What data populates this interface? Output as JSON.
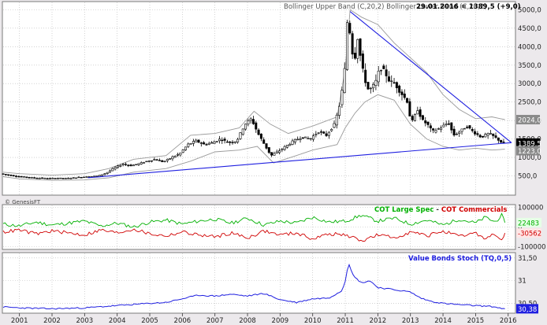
{
  "header": {
    "indicator_label": "Bollinger Upper Band (C,20,2)   Bollinger Lower Band (C,20,2)",
    "quote": "29.01.2016 = 1389,5 (+9,0)"
  },
  "watermark": "© GenesisFT",
  "colors": {
    "price": "#000000",
    "bands": "#9a9a9a",
    "trendline": "#1f1fe0",
    "cot_large": "#00b000",
    "cot_commercials": "#d00000",
    "bond_stoch": "#1f1fe0",
    "grid": "#b8b8b8",
    "panel_bg": "#ffffff",
    "page_bg": "#ece9ec"
  },
  "chart_data": [
    {
      "type": "candlestick",
      "panel": "price",
      "xlim": [
        2000.5,
        2016.2
      ],
      "ylim": [
        0,
        5200
      ],
      "y_ticks": [
        "5000,0",
        "4500,0",
        "4000,0",
        "3500,0",
        "3000,0",
        "2500,0",
        "2000,0",
        "1500,0",
        "1000,0",
        "500,0"
      ],
      "y_tick_values": [
        5000,
        4500,
        4000,
        3500,
        3000,
        2500,
        2000,
        1500,
        1000,
        500
      ],
      "last_value_label": "1389,5",
      "upper_band_label": "2024,0",
      "lower_band_label": "1223,0",
      "price_series": [
        [
          2000.5,
          560
        ],
        [
          2000.75,
          520
        ],
        [
          2001,
          490
        ],
        [
          2001.25,
          470
        ],
        [
          2001.5,
          450
        ],
        [
          2001.75,
          440
        ],
        [
          2002,
          430
        ],
        [
          2002.25,
          440
        ],
        [
          2002.5,
          430
        ],
        [
          2002.75,
          450
        ],
        [
          2003,
          470
        ],
        [
          2003.25,
          480
        ],
        [
          2003.5,
          500
        ],
        [
          2003.75,
          580
        ],
        [
          2004,
          720
        ],
        [
          2004.25,
          820
        ],
        [
          2004.5,
          780
        ],
        [
          2004.75,
          830
        ],
        [
          2005,
          900
        ],
        [
          2005.25,
          950
        ],
        [
          2005.5,
          880
        ],
        [
          2005.75,
          1000
        ],
        [
          2006,
          1100
        ],
        [
          2006.25,
          1350
        ],
        [
          2006.5,
          1450
        ],
        [
          2006.75,
          1350
        ],
        [
          2007,
          1400
        ],
        [
          2007.25,
          1500
        ],
        [
          2007.5,
          1400
        ],
        [
          2007.75,
          1450
        ],
        [
          2008,
          1900
        ],
        [
          2008.2,
          2050
        ],
        [
          2008.4,
          1650
        ],
        [
          2008.6,
          1350
        ],
        [
          2008.8,
          1050
        ],
        [
          2009,
          1150
        ],
        [
          2009.25,
          1300
        ],
        [
          2009.5,
          1450
        ],
        [
          2009.75,
          1550
        ],
        [
          2010,
          1500
        ],
        [
          2010.25,
          1700
        ],
        [
          2010.5,
          1600
        ],
        [
          2010.75,
          1900
        ],
        [
          2010.9,
          2400
        ],
        [
          2011,
          2900
        ],
        [
          2011.1,
          3700
        ],
        [
          2011.15,
          4900
        ],
        [
          2011.25,
          4200
        ],
        [
          2011.35,
          3500
        ],
        [
          2011.45,
          4300
        ],
        [
          2011.55,
          3700
        ],
        [
          2011.65,
          3200
        ],
        [
          2011.8,
          2800
        ],
        [
          2012,
          3000
        ],
        [
          2012.15,
          3450
        ],
        [
          2012.3,
          3300
        ],
        [
          2012.45,
          3050
        ],
        [
          2012.6,
          3000
        ],
        [
          2012.75,
          2800
        ],
        [
          2013,
          2500
        ],
        [
          2013.1,
          1900
        ],
        [
          2013.3,
          2300
        ],
        [
          2013.45,
          2000
        ],
        [
          2013.6,
          1900
        ],
        [
          2013.75,
          1700
        ],
        [
          2014,
          1800
        ],
        [
          2014.25,
          1950
        ],
        [
          2014.4,
          1600
        ],
        [
          2014.6,
          1700
        ],
        [
          2014.8,
          1850
        ],
        [
          2015,
          1700
        ],
        [
          2015.25,
          1550
        ],
        [
          2015.5,
          1650
        ],
        [
          2015.75,
          1500
        ],
        [
          2015.9,
          1390
        ]
      ],
      "upper_band": [
        [
          2000.5,
          600
        ],
        [
          2001,
          560
        ],
        [
          2002,
          520
        ],
        [
          2003,
          560
        ],
        [
          2003.75,
          700
        ],
        [
          2004.5,
          950
        ],
        [
          2005.5,
          1050
        ],
        [
          2006.25,
          1600
        ],
        [
          2007,
          1650
        ],
        [
          2007.75,
          1800
        ],
        [
          2008.2,
          2250
        ],
        [
          2008.7,
          1900
        ],
        [
          2009.25,
          1650
        ],
        [
          2010,
          1850
        ],
        [
          2010.75,
          2100
        ],
        [
          2011,
          3400
        ],
        [
          2011.15,
          5000
        ],
        [
          2011.5,
          4800
        ],
        [
          2012,
          4600
        ],
        [
          2012.5,
          4100
        ],
        [
          2013,
          3700
        ],
        [
          2013.5,
          3300
        ],
        [
          2014,
          2700
        ],
        [
          2014.5,
          2300
        ],
        [
          2015,
          2050
        ],
        [
          2015.5,
          2100
        ],
        [
          2015.9,
          2024
        ]
      ],
      "lower_band": [
        [
          2000.5,
          480
        ],
        [
          2001,
          420
        ],
        [
          2002,
          380
        ],
        [
          2003,
          390
        ],
        [
          2003.75,
          450
        ],
        [
          2004.5,
          600
        ],
        [
          2005.5,
          700
        ],
        [
          2006.25,
          900
        ],
        [
          2007,
          1150
        ],
        [
          2007.75,
          1200
        ],
        [
          2008.3,
          1300
        ],
        [
          2008.8,
          850
        ],
        [
          2009.5,
          1050
        ],
        [
          2010,
          1200
        ],
        [
          2010.75,
          1350
        ],
        [
          2011,
          1800
        ],
        [
          2011.3,
          2200
        ],
        [
          2011.6,
          2500
        ],
        [
          2012,
          2700
        ],
        [
          2012.5,
          2550
        ],
        [
          2013,
          1900
        ],
        [
          2013.5,
          1500
        ],
        [
          2014,
          1300
        ],
        [
          2014.5,
          1200
        ],
        [
          2015,
          1250
        ],
        [
          2015.5,
          1200
        ],
        [
          2015.9,
          1223
        ]
      ],
      "trendlines": [
        {
          "from": [
            2003.1,
            450
          ],
          "to": [
            2016.1,
            1400
          ]
        },
        {
          "from": [
            2011.15,
            4950
          ],
          "to": [
            2016.1,
            1400
          ]
        }
      ]
    },
    {
      "type": "line",
      "panel": "cot",
      "legend": [
        "COT Large Spec",
        " - ",
        "COT Commercials"
      ],
      "ylim": [
        -110000,
        110000
      ],
      "y_ticks": [
        "100000",
        "0",
        "-100000"
      ],
      "y_tick_values": [
        100000,
        0,
        -100000
      ],
      "series": [
        {
          "name": "COT Large Spec",
          "last_label": "22483",
          "values": [
            [
              2000.5,
              15000
            ],
            [
              2001,
              5000
            ],
            [
              2001.5,
              25000
            ],
            [
              2002,
              10000
            ],
            [
              2002.5,
              20000
            ],
            [
              2003,
              30000
            ],
            [
              2003.5,
              5000
            ],
            [
              2004,
              20000
            ],
            [
              2004.5,
              0
            ],
            [
              2005,
              25000
            ],
            [
              2005.5,
              35000
            ],
            [
              2006,
              15000
            ],
            [
              2006.5,
              30000
            ],
            [
              2007,
              40000
            ],
            [
              2007.5,
              20000
            ],
            [
              2008,
              45000
            ],
            [
              2008.5,
              10000
            ],
            [
              2009,
              30000
            ],
            [
              2009.5,
              20000
            ],
            [
              2010,
              50000
            ],
            [
              2010.5,
              25000
            ],
            [
              2011,
              30000
            ],
            [
              2011.5,
              60000
            ],
            [
              2012,
              30000
            ],
            [
              2012.5,
              45000
            ],
            [
              2013,
              15000
            ],
            [
              2013.5,
              35000
            ],
            [
              2014,
              10000
            ],
            [
              2014.5,
              40000
            ],
            [
              2015,
              20000
            ],
            [
              2015.3,
              50000
            ],
            [
              2015.6,
              25000
            ],
            [
              2015.8,
              60000
            ],
            [
              2015.9,
              22483
            ]
          ]
        },
        {
          "name": "COT Commercials",
          "last_label": "-30562",
          "values": [
            [
              2000.5,
              -25000
            ],
            [
              2001,
              -15000
            ],
            [
              2001.5,
              -35000
            ],
            [
              2002,
              -20000
            ],
            [
              2002.5,
              -30000
            ],
            [
              2003,
              -40000
            ],
            [
              2003.5,
              -15000
            ],
            [
              2004,
              -30000
            ],
            [
              2004.5,
              -10000
            ],
            [
              2005,
              -35000
            ],
            [
              2005.5,
              -45000
            ],
            [
              2006,
              -25000
            ],
            [
              2006.5,
              -40000
            ],
            [
              2007,
              -50000
            ],
            [
              2007.5,
              -30000
            ],
            [
              2008,
              -55000
            ],
            [
              2008.5,
              -20000
            ],
            [
              2009,
              -40000
            ],
            [
              2009.5,
              -30000
            ],
            [
              2010,
              -60000
            ],
            [
              2010.5,
              -35000
            ],
            [
              2011,
              -40000
            ],
            [
              2011.5,
              -70000
            ],
            [
              2012,
              -40000
            ],
            [
              2012.5,
              -55000
            ],
            [
              2013,
              -25000
            ],
            [
              2013.5,
              -45000
            ],
            [
              2014,
              -20000
            ],
            [
              2014.5,
              -50000
            ],
            [
              2015,
              -30000
            ],
            [
              2015.3,
              -60000
            ],
            [
              2015.6,
              -35000
            ],
            [
              2015.8,
              -70000
            ],
            [
              2015.9,
              -30562
            ]
          ]
        }
      ]
    },
    {
      "type": "line",
      "panel": "bonds",
      "legend": [
        "Value Bonds Stoch (TQ,0,5)"
      ],
      "ylim": [
        30.3,
        31.6
      ],
      "y_ticks": [
        "31,50",
        "31",
        "30,50"
      ],
      "y_tick_values": [
        31.5,
        31.0,
        30.5
      ],
      "last_value_label": "30,38",
      "series": [
        {
          "name": "Value Bonds Stoch (TQ,0,5)",
          "values": [
            [
              2000.5,
              30.42
            ],
            [
              2001,
              30.4
            ],
            [
              2002,
              30.38
            ],
            [
              2003,
              30.4
            ],
            [
              2004,
              30.45
            ],
            [
              2005,
              30.5
            ],
            [
              2005.5,
              30.52
            ],
            [
              2006,
              30.6
            ],
            [
              2006.5,
              30.68
            ],
            [
              2007,
              30.66
            ],
            [
              2007.5,
              30.7
            ],
            [
              2008,
              30.66
            ],
            [
              2008.5,
              30.72
            ],
            [
              2009,
              30.58
            ],
            [
              2009.5,
              30.52
            ],
            [
              2010,
              30.6
            ],
            [
              2010.5,
              30.62
            ],
            [
              2010.9,
              30.78
            ],
            [
              2011,
              31.0
            ],
            [
              2011.1,
              31.4
            ],
            [
              2011.25,
              31.1
            ],
            [
              2011.5,
              30.95
            ],
            [
              2011.75,
              31.0
            ],
            [
              2012,
              30.85
            ],
            [
              2012.5,
              30.8
            ],
            [
              2013,
              30.75
            ],
            [
              2013.3,
              30.62
            ],
            [
              2013.6,
              30.55
            ],
            [
              2014,
              30.5
            ],
            [
              2014.5,
              30.47
            ],
            [
              2015,
              30.45
            ],
            [
              2015.5,
              30.43
            ],
            [
              2015.9,
              30.38
            ]
          ]
        }
      ]
    }
  ],
  "x_axis": {
    "labels": [
      "2001",
      "2002",
      "2003",
      "2004",
      "2005",
      "2006",
      "2007",
      "2008",
      "2009",
      "2010",
      "2011",
      "2012",
      "2013",
      "2014",
      "2015",
      "2016"
    ],
    "values": [
      2001,
      2002,
      2003,
      2004,
      2005,
      2006,
      2007,
      2008,
      2009,
      2010,
      2011,
      2012,
      2013,
      2014,
      2015,
      2016
    ]
  }
}
